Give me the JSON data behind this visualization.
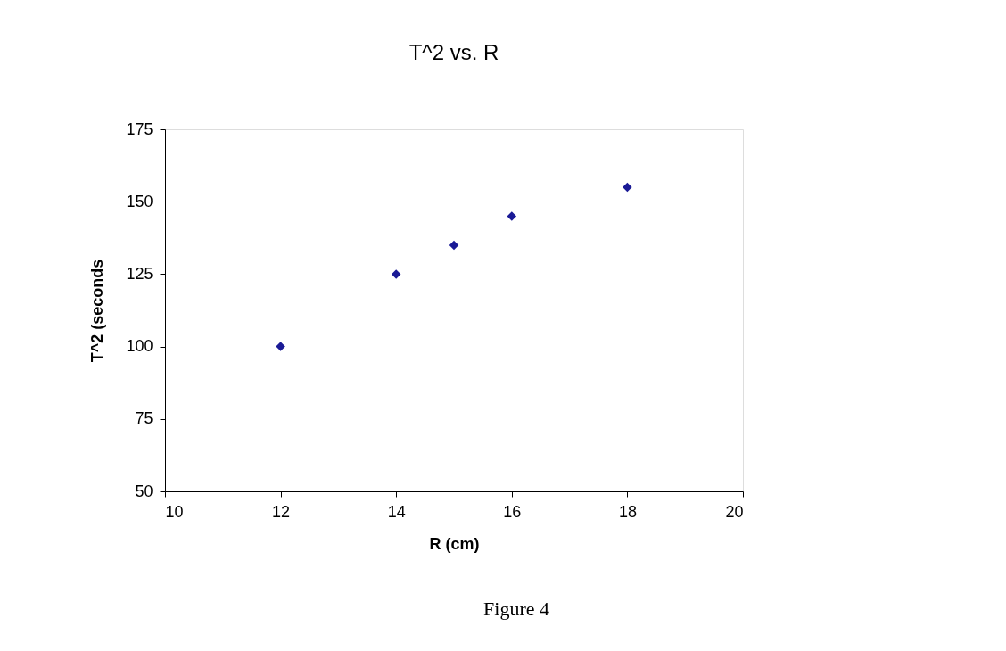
{
  "chart_data": {
    "type": "scatter",
    "title": "T^2  vs.  R",
    "xlabel": "R  (cm)",
    "ylabel": "T^2  (seconds",
    "x": [
      12,
      14,
      15,
      16,
      18
    ],
    "series": [
      {
        "color": "#1a1a96",
        "values": [
          100,
          125,
          135,
          145,
          155
        ]
      }
    ],
    "xlim": [
      10,
      20
    ],
    "xticks": [
      10,
      12,
      14,
      16,
      18,
      20
    ],
    "ylim": [
      50,
      175
    ],
    "yticks": [
      50,
      75,
      100,
      125,
      150,
      175
    ],
    "grid": false,
    "legend": false,
    "marker": "diamond",
    "annotations": [
      "Figure 4"
    ]
  }
}
